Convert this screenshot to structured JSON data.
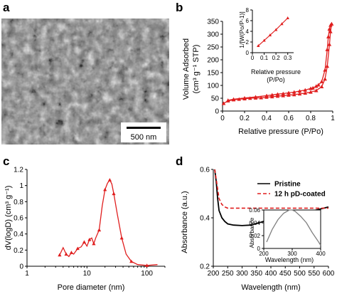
{
  "figure": {
    "panels": {
      "a": {
        "letter": "a",
        "scale_bar_label": "500 nm"
      },
      "b": {
        "letter": "b",
        "xlabel": "Relative pressure (P/Po)",
        "ylabel_line1": "Volume Adsorbed",
        "ylabel_line2": "(cm³ g⁻¹ STP)",
        "inset": {
          "ylabel": "1/[W(Po/P-1)]",
          "xlabel_line1": "Relative pressure",
          "xlabel_line2": "(P/Po)"
        }
      },
      "c": {
        "letter": "c",
        "xlabel": "Pore diameter (nm)",
        "ylabel": "dV(logD) (cm³ g⁻¹)"
      },
      "d": {
        "letter": "d",
        "xlabel": "Wavelength (nm)",
        "ylabel": "Absorbance (a.u.)",
        "inset": {
          "ylabel": "Absorbance",
          "xlabel": "Wavelength (nm)"
        }
      }
    },
    "colors": {
      "red": "#e01e1e",
      "black": "#000000",
      "gray": "#808080"
    }
  },
  "chart_data": [
    {
      "panel": "b",
      "type": "line",
      "xlabel": "Relative pressure (P/Po)",
      "ylabel": "Volume Adsorbed (cm³ g⁻¹ STP)",
      "xlim": [
        0,
        1
      ],
      "ylim": [
        0,
        350
      ],
      "xticks": [
        "0",
        "0.2",
        "0.4",
        "0.6",
        "0.8",
        "1"
      ],
      "yticks": [
        "0",
        "50",
        "100",
        "150",
        "200",
        "250",
        "300",
        "350"
      ],
      "series": [
        {
          "x": [
            0.01,
            0.05,
            0.1,
            0.15,
            0.2,
            0.25,
            0.3,
            0.35,
            0.4,
            0.45,
            0.5,
            0.55,
            0.6,
            0.65,
            0.7,
            0.75,
            0.8,
            0.85,
            0.9,
            0.93,
            0.95,
            0.97,
            0.98,
            0.99
          ],
          "values": [
            30,
            40,
            44,
            46,
            48,
            50,
            51,
            52,
            54,
            56,
            58,
            60,
            62,
            64,
            67,
            70,
            74,
            80,
            95,
            125,
            175,
            260,
            310,
            340
          ]
        },
        {
          "x": [
            0.99,
            0.98,
            0.97,
            0.96,
            0.95,
            0.93,
            0.9,
            0.87,
            0.85,
            0.82,
            0.8,
            0.75,
            0.7,
            0.65,
            0.6,
            0.55,
            0.5,
            0.45,
            0.4,
            0.3,
            0.2,
            0.1,
            0.05
          ],
          "values": [
            340,
            335,
            320,
            290,
            240,
            160,
            115,
            102,
            97,
            90,
            88,
            82,
            78,
            74,
            71,
            68,
            66,
            63,
            60,
            55,
            51,
            46,
            42
          ]
        }
      ]
    },
    {
      "panel": "b-inset",
      "type": "line",
      "ylabel": "1/[W(Po/P-1)]",
      "xlabel": "Relative pressure (P/Po)",
      "xlim": [
        0,
        0.35
      ],
      "ylim": [
        0,
        8
      ],
      "xticks": [
        "0",
        "0.1",
        "0.2",
        "0.3"
      ],
      "yticks": [
        "0",
        "2",
        "4",
        "6",
        "8"
      ],
      "series": [
        {
          "x": [
            0.05,
            0.1,
            0.15,
            0.2,
            0.25,
            0.3
          ],
          "values": [
            1.3,
            2.3,
            3.3,
            4.3,
            5.4,
            6.5
          ]
        }
      ]
    },
    {
      "panel": "c",
      "type": "line",
      "xscale": "log",
      "xlabel": "Pore diameter (nm)",
      "ylabel": "dV(logD) (cm³ g⁻¹)",
      "xlim": [
        1,
        200
      ],
      "ylim": [
        0,
        1.2
      ],
      "xticks": [
        "1",
        "10",
        "100"
      ],
      "yticks": [
        "0",
        "0.2",
        "0.4",
        "0.6",
        "0.8",
        "1",
        "1.2"
      ],
      "series": [
        {
          "x": [
            3.5,
            4,
            4.5,
            5,
            5.5,
            6,
            7,
            8,
            9,
            10,
            11,
            12,
            13,
            14,
            16,
            18,
            20,
            22,
            24,
            26,
            28,
            32,
            38,
            45,
            55,
            70,
            100,
            150
          ],
          "values": [
            0.14,
            0.23,
            0.15,
            0.12,
            0.17,
            0.15,
            0.22,
            0.24,
            0.3,
            0.25,
            0.33,
            0.35,
            0.28,
            0.35,
            0.45,
            0.75,
            0.95,
            1.03,
            1.07,
            1.02,
            0.9,
            0.65,
            0.35,
            0.15,
            0.06,
            0.02,
            0.01,
            0.02
          ]
        }
      ]
    },
    {
      "panel": "d",
      "type": "line",
      "xlabel": "Wavelength (nm)",
      "ylabel": "Absorbance (a.u.)",
      "xlim": [
        200,
        600
      ],
      "ylim": [
        0.2,
        0.6
      ],
      "xticks": [
        "200",
        "250",
        "300",
        "350",
        "400",
        "450",
        "500",
        "550",
        "600"
      ],
      "yticks": [
        "0.2",
        "0.4",
        "0.6"
      ],
      "legend": "top-right",
      "series": [
        {
          "name": "Pristine",
          "x": [
            205,
            210,
            215,
            220,
            230,
            240,
            250,
            270,
            300,
            330,
            360,
            400,
            450,
            500,
            550,
            600
          ],
          "values": [
            0.6,
            0.55,
            0.48,
            0.43,
            0.4,
            0.385,
            0.375,
            0.37,
            0.368,
            0.37,
            0.38,
            0.395,
            0.41,
            0.42,
            0.43,
            0.445
          ]
        },
        {
          "name": "12 h pD-coated",
          "x": [
            205,
            210,
            215,
            220,
            230,
            240,
            250,
            270,
            300,
            330,
            360,
            400,
            450,
            500,
            550,
            600
          ],
          "values": [
            0.6,
            0.56,
            0.52,
            0.48,
            0.455,
            0.445,
            0.44,
            0.44,
            0.44,
            0.44,
            0.44,
            0.44,
            0.44,
            0.44,
            0.44,
            0.44
          ]
        }
      ]
    },
    {
      "panel": "d-inset",
      "type": "line",
      "xlabel": "Wavelength (nm)",
      "ylabel": "Absorbance",
      "xlim": [
        200,
        400
      ],
      "ylim": [
        0,
        0.06
      ],
      "xticks": [
        "200",
        "300",
        "400"
      ],
      "yticks": [
        "0",
        "0.02",
        "0.04",
        "0.06"
      ],
      "series": [
        {
          "x": [
            210,
            230,
            250,
            270,
            290,
            300,
            310,
            330,
            350,
            370,
            390,
            400
          ],
          "values": [
            0.01,
            0.03,
            0.045,
            0.055,
            0.06,
            0.06,
            0.058,
            0.05,
            0.04,
            0.025,
            0.012,
            0.005
          ]
        }
      ]
    }
  ]
}
